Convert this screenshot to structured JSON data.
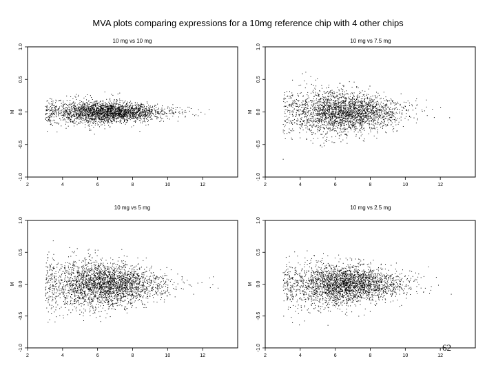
{
  "figure_title": "MVA plots comparing expressions for a 10mg reference chip with 4 other chips",
  "slide_number": "62",
  "chart_data": [
    {
      "type": "scatter",
      "title": "10 mg vs 10 mg",
      "xlabel": "",
      "ylabel": "M",
      "xlim": [
        2,
        14
      ],
      "ylim": [
        -1.0,
        1.0
      ],
      "x_ticks": [
        "2",
        "4",
        "6",
        "8",
        "10",
        "12"
      ],
      "y_ticks": [
        "-1.0",
        "-0.5",
        "0.0",
        "0.5",
        "1.0"
      ],
      "spread": {
        "x_center": 6.5,
        "x_sd": 1.8,
        "m_sd": 0.085,
        "n_points": 2600
      },
      "points": []
    },
    {
      "type": "scatter",
      "title": "10 mg vs 7.5 mg",
      "xlabel": "",
      "ylabel": "M",
      "xlim": [
        2,
        14
      ],
      "ylim": [
        -1.0,
        1.0
      ],
      "x_ticks": [
        "2",
        "4",
        "6",
        "8",
        "10",
        "12"
      ],
      "y_ticks": [
        "-1.0",
        "-0.5",
        "0.0",
        "0.5",
        "1.0"
      ],
      "spread": {
        "x_center": 6.5,
        "x_sd": 1.8,
        "m_sd": 0.16,
        "n_points": 2600
      },
      "points": []
    },
    {
      "type": "scatter",
      "title": "10 mg vs 5 mg",
      "xlabel": "",
      "ylabel": "M",
      "xlim": [
        2,
        14
      ],
      "ylim": [
        -1.0,
        1.0
      ],
      "x_ticks": [
        "2",
        "4",
        "6",
        "8",
        "10",
        "12"
      ],
      "y_ticks": [
        "-1.0",
        "-0.5",
        "0.0",
        "0.5",
        "1.0"
      ],
      "spread": {
        "x_center": 6.4,
        "x_sd": 1.8,
        "m_sd": 0.18,
        "n_points": 2800
      },
      "points": []
    },
    {
      "type": "scatter",
      "title": "10 mg vs 2.5 mg",
      "xlabel": "",
      "ylabel": "M",
      "xlim": [
        2,
        14
      ],
      "ylim": [
        -1.0,
        1.0
      ],
      "x_ticks": [
        "2",
        "4",
        "6",
        "8",
        "10",
        "12"
      ],
      "y_ticks": [
        "-1.0",
        "-0.5",
        "0.0",
        "0.5",
        "1.0"
      ],
      "spread": {
        "x_center": 6.5,
        "x_sd": 1.8,
        "m_sd": 0.16,
        "n_points": 2800
      },
      "points": []
    }
  ]
}
